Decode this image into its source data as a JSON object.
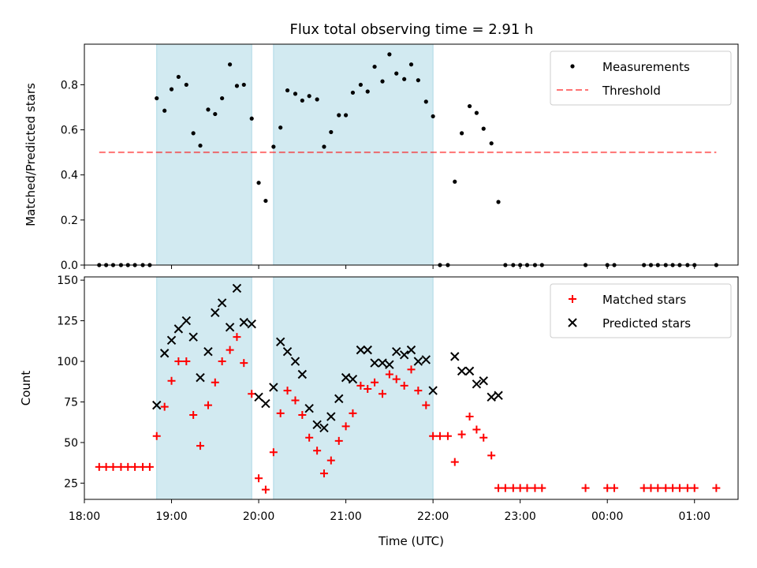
{
  "title": "Flux total observing time = 2.91 h",
  "colors": {
    "band": "#add8e6",
    "measurement": "#000000",
    "threshold": "#ff0000",
    "matched": "#ff0000",
    "predicted": "#000000"
  },
  "chart_data": [
    {
      "type": "scatter",
      "ylabel": "Matched/Predicted stars",
      "xlim": [
        18.0,
        25.5
      ],
      "ylim": [
        0,
        0.98
      ],
      "yticks": [
        "0.0",
        "0.2",
        "0.4",
        "0.6",
        "0.8"
      ],
      "shaded_intervals": [
        [
          18.83,
          19.92
        ],
        [
          20.17,
          22.0
        ]
      ],
      "legend": {
        "position": "top-right",
        "entries": [
          "Measurements",
          "Threshold"
        ]
      },
      "threshold": {
        "name": "Threshold",
        "value": 0.5,
        "x": [
          18.17,
          25.25
        ]
      },
      "series": [
        {
          "name": "Measurements",
          "x": [
            18.17,
            18.25,
            18.33,
            18.42,
            18.5,
            18.58,
            18.67,
            18.75,
            18.83,
            18.92,
            19.0,
            19.08,
            19.17,
            19.25,
            19.33,
            19.42,
            19.5,
            19.58,
            19.67,
            19.75,
            19.83,
            19.92,
            20.0,
            20.08,
            20.17,
            20.25,
            20.33,
            20.42,
            20.5,
            20.58,
            20.67,
            20.75,
            20.83,
            20.92,
            21.0,
            21.08,
            21.17,
            21.25,
            21.33,
            21.42,
            21.5,
            21.58,
            21.67,
            21.75,
            21.83,
            21.92,
            22.0,
            22.08,
            22.17,
            22.25,
            22.33,
            22.42,
            22.5,
            22.58,
            22.67,
            22.75,
            22.83,
            22.92,
            23.0,
            23.08,
            23.17,
            23.25,
            23.75,
            24.0,
            24.08,
            24.42,
            24.5,
            24.58,
            24.67,
            24.75,
            24.83,
            24.92,
            25.0,
            25.25
          ],
          "y": [
            0,
            0,
            0,
            0,
            0,
            0,
            0,
            0,
            0.74,
            0.685,
            0.78,
            0.835,
            0.8,
            0.585,
            0.53,
            0.69,
            0.67,
            0.74,
            0.89,
            0.795,
            0.8,
            0.65,
            0.365,
            0.285,
            0.525,
            0.61,
            0.775,
            0.76,
            0.73,
            0.75,
            0.735,
            0.525,
            0.59,
            0.665,
            0.665,
            0.765,
            0.8,
            0.77,
            0.88,
            0.815,
            0.935,
            0.85,
            0.825,
            0.89,
            0.82,
            0.725,
            0.66,
            0,
            0,
            0.37,
            0.585,
            0.705,
            0.675,
            0.605,
            0.54,
            0.28,
            0,
            0,
            0,
            0,
            0,
            0,
            0,
            0,
            0,
            0,
            0,
            0,
            0,
            0,
            0,
            0,
            0,
            0
          ]
        }
      ]
    },
    {
      "type": "scatter",
      "xlabel": "Time (UTC)",
      "ylabel": "Count",
      "xlim": [
        18.0,
        25.5
      ],
      "ylim": [
        15,
        152
      ],
      "xticks": [
        "18:00",
        "19:00",
        "20:00",
        "21:00",
        "22:00",
        "23:00",
        "00:00",
        "01:00"
      ],
      "yticks": [
        "25",
        "50",
        "75",
        "100",
        "125",
        "150"
      ],
      "shaded_intervals": [
        [
          18.83,
          19.92
        ],
        [
          20.17,
          22.0
        ]
      ],
      "legend": {
        "position": "top-right",
        "entries": [
          "Matched stars",
          "Predicted stars"
        ]
      },
      "series": [
        {
          "name": "Matched stars",
          "x": [
            18.17,
            18.25,
            18.33,
            18.42,
            18.5,
            18.58,
            18.67,
            18.75,
            18.83,
            18.92,
            19.0,
            19.08,
            19.17,
            19.25,
            19.33,
            19.42,
            19.5,
            19.58,
            19.67,
            19.75,
            19.83,
            19.92,
            20.0,
            20.08,
            20.17,
            20.25,
            20.33,
            20.42,
            20.5,
            20.58,
            20.67,
            20.75,
            20.83,
            20.92,
            21.0,
            21.08,
            21.17,
            21.25,
            21.33,
            21.42,
            21.5,
            21.58,
            21.67,
            21.75,
            21.83,
            21.92,
            22.0,
            22.08,
            22.17,
            22.25,
            22.33,
            22.42,
            22.5,
            22.58,
            22.67,
            22.75,
            22.83,
            22.92,
            23.0,
            23.08,
            23.17,
            23.25,
            23.75,
            24.0,
            24.08,
            24.42,
            24.5,
            24.58,
            24.67,
            24.75,
            24.83,
            24.92,
            25.0,
            25.25
          ],
          "y": [
            35,
            35,
            35,
            35,
            35,
            35,
            35,
            35,
            54,
            72,
            88,
            100,
            100,
            67,
            48,
            73,
            87,
            100,
            107,
            115,
            99,
            80,
            28,
            21,
            44,
            68,
            82,
            76,
            67,
            53,
            45,
            31,
            39,
            51,
            60,
            68,
            85,
            83,
            87,
            80,
            92,
            89,
            85,
            95,
            82,
            73,
            54,
            54,
            54,
            38,
            55,
            66,
            58,
            53,
            42,
            22,
            22,
            22,
            22,
            22,
            22,
            22,
            22,
            22,
            22,
            22,
            22,
            22,
            22,
            22,
            22,
            22,
            22,
            22
          ]
        },
        {
          "name": "Predicted stars",
          "x": [
            18.83,
            18.92,
            19.0,
            19.08,
            19.17,
            19.25,
            19.33,
            19.42,
            19.5,
            19.58,
            19.67,
            19.75,
            19.83,
            19.92,
            20.0,
            20.08,
            20.17,
            20.25,
            20.33,
            20.42,
            20.5,
            20.58,
            20.67,
            20.75,
            20.83,
            20.92,
            21.0,
            21.08,
            21.17,
            21.25,
            21.33,
            21.42,
            21.5,
            21.58,
            21.67,
            21.75,
            21.83,
            21.92,
            22.0,
            22.25,
            22.33,
            22.42,
            22.5,
            22.58,
            22.67,
            22.75
          ],
          "y": [
            73,
            105,
            113,
            120,
            125,
            115,
            90,
            106,
            130,
            136,
            121,
            145,
            124,
            123,
            78,
            74,
            84,
            112,
            106,
            100,
            92,
            71,
            61,
            59,
            66,
            77,
            90,
            89,
            107,
            107,
            99,
            99,
            98,
            106,
            104,
            107,
            100,
            101,
            82,
            103,
            94,
            94,
            86,
            88,
            78,
            79
          ]
        }
      ]
    }
  ]
}
